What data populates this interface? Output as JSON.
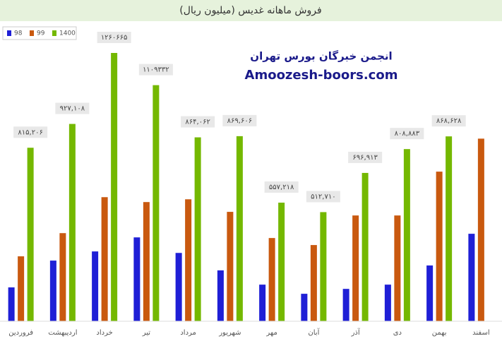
{
  "chart_data": {
    "type": "bar",
    "title": "فروش ماهانه غدیس (میلیون ریال)",
    "annotations": [
      "انجمن خبرگان بورس تهران",
      "Amoozesh-boors.com"
    ],
    "categories": [
      "فروردین",
      "اردیبهشت",
      "خرداد",
      "تیر",
      "مرداد",
      "شهریور",
      "مهر",
      "آبان",
      "آذر",
      "دی",
      "بهمن",
      "اسفند"
    ],
    "series": [
      {
        "name": "98",
        "color": "#1f1fd6",
        "values": [
          159000,
          285000,
          328000,
          394000,
          321000,
          239000,
          172000,
          129000,
          152000,
          172000,
          262000,
          411000
        ]
      },
      {
        "name": "99",
        "color": "#c9590f",
        "values": [
          305000,
          414000,
          583000,
          560000,
          573000,
          514000,
          391000,
          358000,
          497000,
          497000,
          703000,
          858000
        ]
      },
      {
        "name": "1400",
        "color": "#74b800",
        "values": [
          815206,
          927108,
          1260665,
          1109332,
          864062,
          869606,
          557218,
          512710,
          696913,
          808883,
          868628,
          null
        ],
        "value_labels": [
          "۸۱۵,۲۰۶",
          "۹۲۷,۱۰۸",
          "۱۲۶۰۶۶۵",
          "۱۱۰۹۳۳۲",
          "۸۶۴,۰۶۲",
          "۸۶۹,۶۰۶",
          "۵۵۷,۲۱۸",
          "۵۱۲,۷۱۰",
          "۶۹۶,۹۱۳",
          "۸۰۸,۸۸۳",
          "۸۶۸,۶۲۸",
          null
        ]
      }
    ],
    "ylim": [
      0,
      1400000
    ],
    "legend": "top-left"
  }
}
